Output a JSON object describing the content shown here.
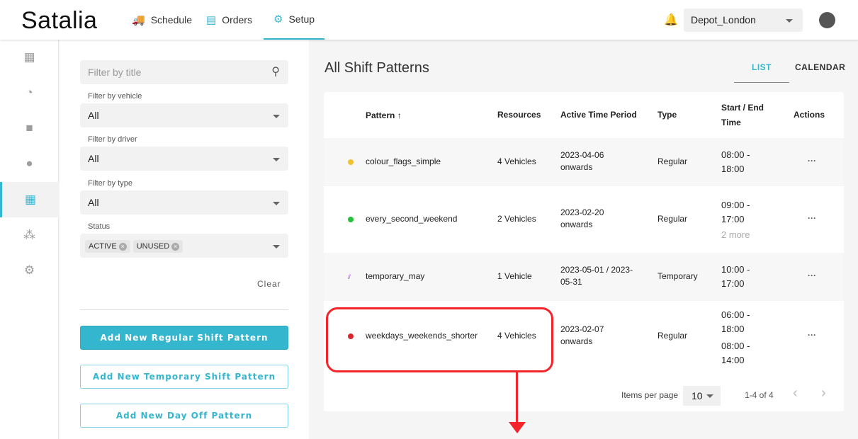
{
  "header": {
    "logo": "Satalia",
    "nav": [
      {
        "label": "Schedule",
        "icon": "truck-icon"
      },
      {
        "label": "Orders",
        "icon": "clipboard-icon"
      },
      {
        "label": "Setup",
        "icon": "gear-icon",
        "active": true
      }
    ],
    "depot": "Depot_London",
    "bell_icon": "bell-icon",
    "account_icon": "account-circle-icon"
  },
  "sidebar": {
    "items": [
      {
        "icon": "store-icon"
      },
      {
        "icon": "speedometer-icon"
      },
      {
        "icon": "truck-icon"
      },
      {
        "icon": "person-icon"
      },
      {
        "icon": "calendar-icon",
        "active": true
      },
      {
        "icon": "group-icon"
      },
      {
        "icon": "group-settings-icon"
      }
    ]
  },
  "filters": {
    "title_placeholder": "Filter by title",
    "vehicle_label": "Filter by vehicle",
    "vehicle_value": "All",
    "driver_label": "Filter by driver",
    "driver_value": "All",
    "type_label": "Filter by type",
    "type_value": "All",
    "status_label": "Status",
    "status_chips": [
      "ACTIVE",
      "UNUSED"
    ],
    "clear": "Clear",
    "add_regular": "Add New Regular Shift Pattern",
    "add_temporary": "Add New Temporary Shift Pattern",
    "add_dayoff": "Add New Day Off Pattern"
  },
  "main": {
    "title": "All Shift Patterns",
    "tabs": [
      "LIST",
      "CALENDAR"
    ],
    "active_tab": "LIST",
    "columns": [
      "Pattern",
      "Resources",
      "Active Time Period",
      "Type",
      "Start / End Time",
      "Actions"
    ],
    "rows": [
      {
        "color": "#f2c12e",
        "pattern": "colour_flags_simple",
        "resources": "4 Vehicles",
        "period": [
          "2023-04-06",
          "onwards"
        ],
        "type": "Regular",
        "times": [
          "08:00 -",
          "18:00"
        ],
        "more": ""
      },
      {
        "color": "#22c33b",
        "pattern": "every_second_weekend",
        "resources": "2 Vehicles",
        "period": [
          "2023-02-20",
          "onwards"
        ],
        "type": "Regular",
        "times": [
          "09:00 -",
          "17:00"
        ],
        "more": "2 more"
      },
      {
        "color": "#8a2be2",
        "pattern": "temporary_may",
        "resources": "1 Vehicle",
        "period": [
          "2023-05-01 / 2023-",
          "05-31"
        ],
        "type": "Temporary",
        "times": [
          "10:00 -",
          "17:00"
        ],
        "more": ""
      },
      {
        "color": "#d9262b",
        "pattern": "weekdays_weekends_shorter",
        "resources": "4 Vehicles",
        "period": [
          "2023-02-07",
          "onwards"
        ],
        "type": "Regular",
        "times": [
          "06:00 -",
          "18:00",
          "08:00 -",
          "14:00"
        ],
        "more": ""
      }
    ],
    "pagination": {
      "items_per_page_label": "Items per page",
      "items_per_page": "10",
      "range": "1-4 of 4"
    }
  }
}
